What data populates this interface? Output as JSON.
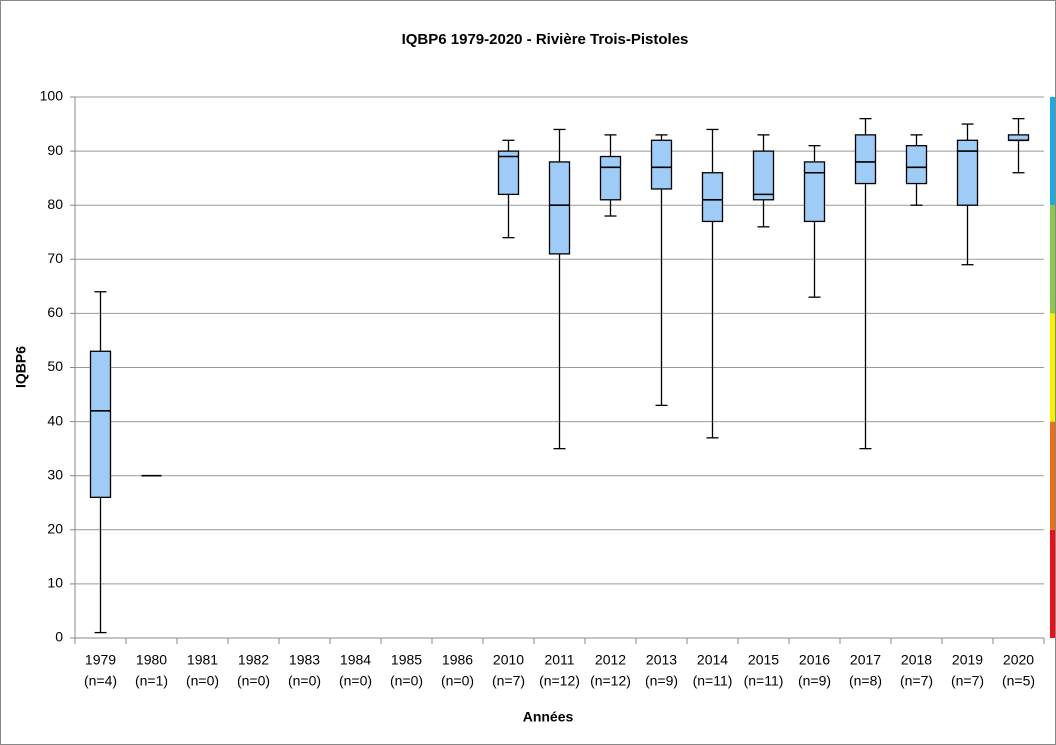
{
  "chart_data": {
    "type": "box",
    "title": "IQBP6 1979-2020 - Rivière Trois-Pistoles",
    "x_label": "Années",
    "y_label": "IQBP6",
    "categories": [
      "1979",
      "1980",
      "1981",
      "1982",
      "1983",
      "1984",
      "1985",
      "1986",
      "2010",
      "2011",
      "2012",
      "2013",
      "2014",
      "2015",
      "2016",
      "2017",
      "2018",
      "2019",
      "2020"
    ],
    "count_labels": [
      "(n=4)",
      "(n=1)",
      "(n=0)",
      "(n=0)",
      "(n=0)",
      "(n=0)",
      "(n=0)",
      "(n=0)",
      "(n=7)",
      "(n=12)",
      "(n=12)",
      "(n=9)",
      "(n=11)",
      "(n=11)",
      "(n=9)",
      "(n=8)",
      "(n=7)",
      "(n=7)",
      "(n=5)"
    ],
    "min": [
      1,
      30,
      null,
      null,
      null,
      null,
      null,
      null,
      74,
      35,
      78,
      43,
      37,
      76,
      63,
      35,
      80,
      69,
      86
    ],
    "q1": [
      26,
      30,
      null,
      null,
      null,
      null,
      null,
      null,
      82,
      71,
      81,
      83,
      77,
      81,
      77,
      84,
      84,
      80,
      92
    ],
    "median": [
      42,
      30,
      null,
      null,
      null,
      null,
      null,
      null,
      89,
      80,
      87,
      87,
      81,
      82,
      86,
      88,
      87,
      90,
      92
    ],
    "q3": [
      53,
      30,
      null,
      null,
      null,
      null,
      null,
      null,
      90,
      88,
      89,
      92,
      86,
      90,
      88,
      93,
      91,
      92,
      93
    ],
    "max": [
      64,
      30,
      null,
      null,
      null,
      null,
      null,
      null,
      92,
      94,
      93,
      93,
      94,
      93,
      91,
      96,
      93,
      95,
      96
    ],
    "color": "#9fcbf7",
    "ylim": [
      0,
      100
    ],
    "yticks": [
      0,
      10,
      20,
      30,
      40,
      50,
      60,
      70,
      80,
      90,
      100
    ],
    "grid": true,
    "class_bands": [
      {
        "from": 0,
        "to": 20,
        "color": "#e8101a"
      },
      {
        "from": 20,
        "to": 40,
        "color": "#e8701a"
      },
      {
        "from": 40,
        "to": 60,
        "color": "#f8f000"
      },
      {
        "from": 60,
        "to": 80,
        "color": "#8cc84c"
      },
      {
        "from": 80,
        "to": 100,
        "color": "#1ea8e0"
      }
    ]
  }
}
